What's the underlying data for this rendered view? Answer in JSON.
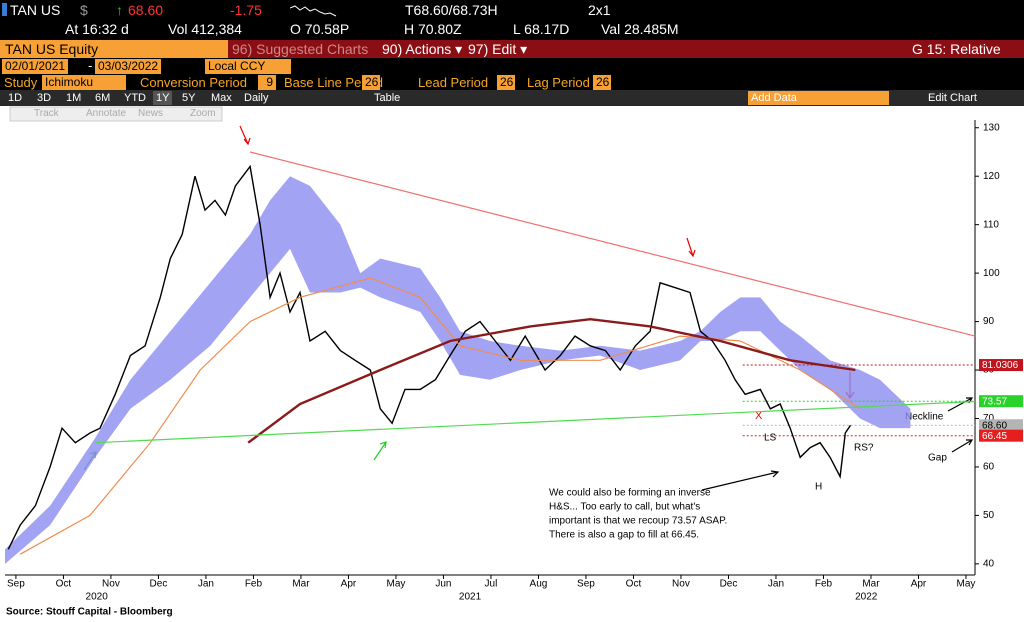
{
  "toolbar": {
    "ticker": "TAN US",
    "currency": "$",
    "last": "68.60",
    "change": "-1.75",
    "bid_ask": "T68.60/68.73H",
    "layout": "2x1",
    "time": "At 16:32 d",
    "volume": "Vol 412,384",
    "open": "O 70.58P",
    "high": "H 70.80Z",
    "low": "L 68.17D",
    "value": "Val 28.485M",
    "security": "TAN US Equity",
    "menu": [
      "96) Suggested Charts",
      "90) Actions ▾",
      "97) Edit ▾"
    ],
    "page_title": "G 15: Relative",
    "start_date": "02/01/2021",
    "end_date": "03/03/2022",
    "currency_mode": "Local CCY",
    "study_label": "Study",
    "study": "Ichimoku",
    "params": [
      {
        "label": "Conversion Period",
        "value": "9"
      },
      {
        "label": "Base Line Period",
        "value": "26"
      },
      {
        "label": "Lead Period",
        "value": "26"
      },
      {
        "label": "Lag Period",
        "value": "26"
      }
    ],
    "ranges": [
      "1D",
      "3D",
      "1M",
      "6M",
      "YTD",
      "1Y",
      "5Y",
      "Max"
    ],
    "frequency": "Daily",
    "table": "Table",
    "add_data": "Add Data",
    "edit_chart": "Edit Chart",
    "tools": [
      "Track",
      "Annotate",
      "News",
      "Zoom"
    ]
  },
  "chart_data": {
    "type": "line",
    "xlim": [
      0.27,
      20.69
    ],
    "ylim": [
      37.7,
      131.6
    ],
    "xticks": [
      {
        "value": 0.5,
        "label": "Sep"
      },
      {
        "value": 1.5,
        "label": "Oct"
      },
      {
        "value": 2.5,
        "label": "Nov"
      },
      {
        "value": 3.5,
        "label": "Dec"
      },
      {
        "value": 4.5,
        "label": "Jan"
      },
      {
        "value": 5.5,
        "label": "Feb"
      },
      {
        "value": 6.5,
        "label": "Mar"
      },
      {
        "value": 7.5,
        "label": "Apr"
      },
      {
        "value": 8.5,
        "label": "May"
      },
      {
        "value": 9.5,
        "label": "Jun"
      },
      {
        "value": 10.5,
        "label": "Jul"
      },
      {
        "value": 11.5,
        "label": "Aug"
      },
      {
        "value": 12.5,
        "label": "Sep"
      },
      {
        "value": 13.5,
        "label": "Oct"
      },
      {
        "value": 14.5,
        "label": "Nov"
      },
      {
        "value": 15.5,
        "label": "Dec"
      },
      {
        "value": 16.5,
        "label": "Jan"
      },
      {
        "value": 17.5,
        "label": "Feb"
      },
      {
        "value": 18.5,
        "label": "Mar"
      },
      {
        "value": 19.5,
        "label": "Apr"
      },
      {
        "value": 20.5,
        "label": "May"
      }
    ],
    "year_ticks": [
      {
        "value": 2.2,
        "label": "2020"
      },
      {
        "value": 10.06,
        "label": "2021"
      },
      {
        "value": 18.4,
        "label": "2022"
      }
    ],
    "yticks": [
      40,
      50,
      60,
      70,
      80,
      90,
      100,
      110,
      120,
      130
    ],
    "cloud": {
      "color": "#8c8cf0",
      "x": [
        0.27,
        1.22,
        2.17,
        2.91,
        3.75,
        4.59,
        5.43,
        5.85,
        6.27,
        6.69,
        7.33,
        7.75,
        8.17,
        9.01,
        9.43,
        9.85,
        10.48,
        11.12,
        11.96,
        12.8,
        13.64,
        14.48,
        14.91,
        15.33,
        15.75,
        16.17,
        16.59,
        17.01,
        17.64,
        18.27,
        18.69,
        19.33
      ],
      "upper": [
        43,
        52,
        66,
        78,
        88,
        98,
        108,
        115,
        120,
        118,
        110,
        100,
        103,
        101,
        95,
        88,
        86,
        85,
        84,
        85,
        84,
        86,
        88,
        92,
        95,
        95,
        90,
        87,
        82,
        80,
        78,
        72
      ],
      "lower": [
        40,
        48,
        62,
        72,
        78,
        85,
        95,
        100,
        105,
        96,
        96,
        97,
        95,
        92,
        86,
        79,
        78,
        80,
        82,
        83,
        80,
        82,
        86,
        86,
        88,
        88,
        84,
        80,
        76,
        70,
        68,
        68
      ]
    },
    "series": [
      {
        "color": "#000000",
        "width": 1.4,
        "x": [
          0.34,
          0.59,
          0.91,
          1.22,
          1.47,
          1.75,
          2.06,
          2.27,
          2.59,
          2.91,
          3.22,
          3.54,
          3.75,
          4.0,
          4.27,
          4.48,
          4.69,
          4.91,
          5.12,
          5.43,
          5.64,
          5.85,
          6.06,
          6.27,
          6.48,
          6.69,
          7.01,
          7.33,
          7.64,
          7.96,
          8.17,
          8.42,
          8.69,
          9.01,
          9.33,
          9.64,
          9.96,
          10.27,
          10.59,
          10.91,
          11.22,
          11.64,
          11.96,
          12.27,
          12.59,
          12.91,
          13.22,
          13.54,
          13.85,
          14.06,
          14.38,
          14.69,
          14.91,
          15.16,
          15.43,
          15.64,
          15.85,
          16.17,
          16.38,
          16.59,
          16.8,
          17.01,
          17.22,
          17.43,
          17.64,
          17.85,
          17.96,
          18.07
        ],
        "values": [
          43,
          48,
          52,
          60,
          68,
          65,
          67,
          68,
          75,
          83,
          85,
          95,
          103,
          108,
          120,
          113,
          115,
          112,
          118,
          122,
          110,
          95,
          100,
          92,
          96,
          86,
          88,
          84,
          82,
          80,
          72,
          69,
          76,
          76,
          78,
          83,
          88,
          90,
          86,
          82,
          87,
          80,
          83,
          87,
          85,
          84,
          80,
          85,
          88,
          98,
          97,
          96,
          88,
          86,
          82,
          78,
          75,
          76,
          72,
          73,
          68,
          62,
          64,
          65,
          62,
          58,
          67,
          68.6
        ]
      },
      {
        "color": "#f08c50",
        "width": 1.2,
        "x": [
          0.59,
          2.06,
          3.33,
          4.38,
          5.43,
          6.48,
          7.96,
          9.01,
          9.85,
          11.12,
          12.8,
          14.48,
          15.75,
          17.01,
          18.27
        ],
        "values": [
          42,
          50,
          65,
          80,
          90,
          95,
          99,
          95,
          85,
          82,
          82,
          87,
          86,
          80,
          72
        ]
      },
      {
        "color": "#8b1a1a",
        "width": 2.4,
        "x": [
          5.39,
          6.48,
          8.17,
          9.64,
          11.33,
          12.59,
          13.85,
          15.33,
          16.8,
          18.17
        ],
        "values": [
          65,
          73,
          80,
          86,
          89,
          90.5,
          89,
          86,
          82,
          80
        ]
      },
      {
        "color": "#f07070",
        "width": 1.2,
        "x": [
          5.43,
          20.69
        ],
        "values": [
          125,
          87
        ]
      },
      {
        "color": "#50dc50",
        "width": 1.2,
        "x": [
          2.17,
          20.69
        ],
        "values": [
          65,
          73.5
        ]
      }
    ],
    "price_tags": [
      {
        "value": 81.0306,
        "label": "81.0306",
        "color": "#c0141e"
      },
      {
        "value": 73.57,
        "label": "73.57",
        "color": "#28d228"
      },
      {
        "value": 68.6,
        "label": "68.60",
        "color": "#b4b4b4"
      },
      {
        "value": 66.45,
        "label": "66.45",
        "color": "#e61e1e"
      }
    ],
    "annotations": [
      "X",
      "LS",
      "H",
      "RS?",
      "Neckline",
      "Gap"
    ],
    "note": [
      "We could also be forming an inverse",
      "H&S... Too early to call, but what's",
      "important is that we recoup 73.57 ASAP.",
      "There is also a gap to fill at 66.45."
    ],
    "source": "Source: Stouff Capital - Bloomberg"
  }
}
